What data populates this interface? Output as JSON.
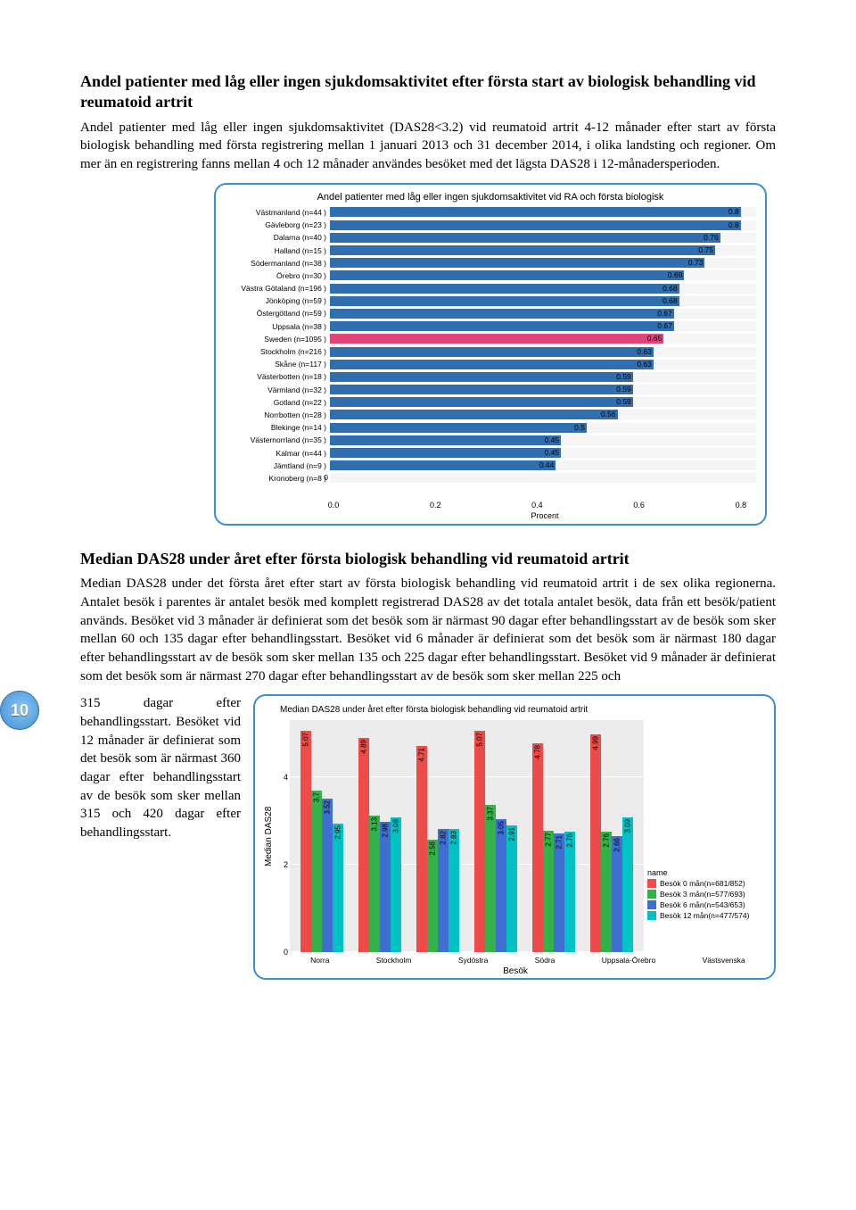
{
  "page_number": "10",
  "section1": {
    "heading": "Andel patienter med låg eller ingen sjukdomsaktivitet efter första start av biologisk behandling vid reumatoid artrit",
    "body": "Andel patienter med låg eller ingen sjukdomsaktivitet (DAS28<3.2) vid reumatoid artrit 4-12 månader efter start av första biologisk behandling med första registrering mellan 1 januari 2013 och 31 december 2014, i olika landsting och regioner. Om mer än en registrering fanns mellan 4 och 12 månader användes besöket med det lägsta DAS28 i 12-månadersperioden."
  },
  "chart1": {
    "type": "hbar",
    "title": "Andel patienter med låg eller ingen sjukdomsaktivitet vid RA och första biologisk",
    "xlabel": "Procent",
    "xlim": [
      0.0,
      0.83
    ],
    "xticks": [
      0.0,
      0.2,
      0.4,
      0.6,
      0.8
    ],
    "xtick_labels": [
      "0.0",
      "0.2",
      "0.4",
      "0.6",
      "0.8"
    ],
    "bar_color": "#2f6fb0",
    "highlight_color": "#e2447a",
    "background": "#f5f5f5",
    "rows": [
      {
        "label": "Västmanland (n=44 )",
        "value": 0.8,
        "text": "0.8"
      },
      {
        "label": "Gävleborg (n=23 )",
        "value": 0.8,
        "text": "0.8"
      },
      {
        "label": "Dalarna (n=40 )",
        "value": 0.76,
        "text": "0.76"
      },
      {
        "label": "Halland (n=15 )",
        "value": 0.75,
        "text": "0.75"
      },
      {
        "label": "Södermanland (n=38 )",
        "value": 0.73,
        "text": "0.73"
      },
      {
        "label": "Örebro (n=30 )",
        "value": 0.69,
        "text": "0.69"
      },
      {
        "label": "Västra Götaland (n=196 )",
        "value": 0.68,
        "text": "0.68"
      },
      {
        "label": "Jönköping (n=59 )",
        "value": 0.68,
        "text": "0.68"
      },
      {
        "label": "Östergötland (n=59 )",
        "value": 0.67,
        "text": "0.67"
      },
      {
        "label": "Uppsala (n=38 )",
        "value": 0.67,
        "text": "0.67"
      },
      {
        "label": "Sweden (n=1095 )",
        "value": 0.65,
        "text": "0.65",
        "highlight": true
      },
      {
        "label": "Stockholm (n=216 )",
        "value": 0.63,
        "text": "0.63"
      },
      {
        "label": "Skåne (n=117 )",
        "value": 0.63,
        "text": "0.63"
      },
      {
        "label": "Västerbotten (n=18 )",
        "value": 0.59,
        "text": "0.59"
      },
      {
        "label": "Värmland (n=32 )",
        "value": 0.59,
        "text": "0.59"
      },
      {
        "label": "Gotland (n=22 )",
        "value": 0.59,
        "text": "0.59"
      },
      {
        "label": "Norrbotten (n=28 )",
        "value": 0.56,
        "text": "0.56"
      },
      {
        "label": "Blekinge (n=14 )",
        "value": 0.5,
        "text": "0.5"
      },
      {
        "label": "Västernorrland (n=35 )",
        "value": 0.45,
        "text": "0.45"
      },
      {
        "label": "Kalmar (n=44 )",
        "value": 0.45,
        "text": "0.45"
      },
      {
        "label": "Jämtland (n=9 )",
        "value": 0.44,
        "text": "0.44"
      },
      {
        "label": "Kronoberg (n=8 )",
        "value": 0.0,
        "text": "0"
      }
    ]
  },
  "section2": {
    "heading": "Median DAS28 under året efter första biologisk behandling vid reumatoid artrit",
    "body": "Median DAS28 under det första året efter start av första biologisk behandling vid reumatoid artrit i de sex olika regionerna. Antalet besök i parentes är antalet besök med komplett registrerad DAS28 av det totala antalet besök, data från ett besök/patient används. Besöket vid 3 månader är definierat som det besök som är närmast 90 dagar efter behandlingsstart av de besök som sker mellan 60 och 135 dagar efter behandlingsstart. Besöket vid 6 månader är definierat som det besök som är närmast 180 dagar efter behandlingsstart av de besök som sker mellan 135 och 225 dagar efter behandlingsstart. Besöket vid 9 månader är definierat som det besök som är närmast 270 dagar efter behandlingsstart av de besök som sker mellan 225 och",
    "body_left": "315 dagar efter behandlingsstart. Besöket vid 12 månader är definierat som det besök som är närmast 360 dagar efter behandlingsstart av de besök som sker mellan 315 och 420 dagar efter behandlingsstart."
  },
  "chart2": {
    "type": "grouped_bar",
    "title": "Median DAS28 under året efter första biologisk behandling vid reumatoid artrit",
    "ylabel": "Median DAS28",
    "xlabel": "Besök",
    "ylim": [
      0,
      5.3
    ],
    "yticks": [
      0,
      2,
      4
    ],
    "background": "#ececec",
    "grid_color": "#ffffff",
    "series_colors": [
      "#ef4a4a",
      "#34b24a",
      "#3f6fd1",
      "#00c2c2"
    ],
    "categories": [
      "Norra",
      "Stockholm",
      "Sydöstra",
      "Södra",
      "Uppsala-Örebro",
      "Västsvenska"
    ],
    "groups": [
      [
        5.07,
        3.7,
        3.52,
        2.95
      ],
      [
        4.89,
        3.13,
        2.98,
        3.08
      ],
      [
        4.71,
        2.58,
        2.82,
        2.83
      ],
      [
        5.07,
        3.37,
        3.05,
        2.91
      ],
      [
        4.78,
        2.77,
        2.71,
        2.76
      ],
      [
        4.99,
        2.76,
        2.66,
        3.09
      ]
    ],
    "legend_title": "name",
    "legend": [
      "Besök 0 mån(n=681/852)",
      "Besök 3 mån(n=577/693)",
      "Besök 6 mån(n=543/653)",
      "Besök 12 mån(n=477/574)"
    ]
  }
}
